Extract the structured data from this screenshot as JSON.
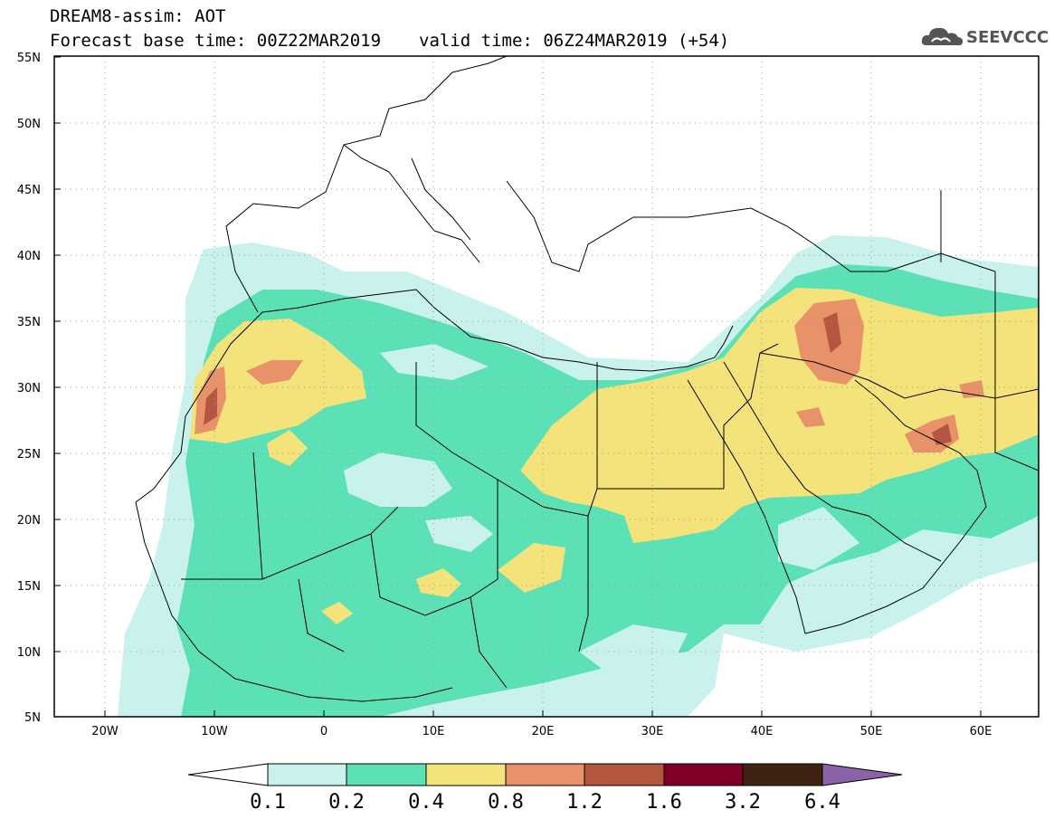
{
  "header": {
    "line1": "DREAM8-assim: AOT",
    "base_time": "Forecast base time: 00Z22MAR2019",
    "valid_time": "valid time: 06Z24MAR2019 (+54)"
  },
  "logo": {
    "text": "SEEVCCC",
    "icon": "cloud-icon"
  },
  "map": {
    "lat_labels": [
      "55N",
      "50N",
      "45N",
      "40N",
      "35N",
      "30N",
      "25N",
      "20N",
      "15N",
      "10N",
      "5N"
    ],
    "lon_labels": [
      "20W",
      "10W",
      "0",
      "10E",
      "20E",
      "30E",
      "40E",
      "50E",
      "60E"
    ],
    "extent": {
      "lon": [
        -25,
        65
      ],
      "lat": [
        5,
        55
      ]
    },
    "grid": "dotted"
  },
  "colorbar": {
    "labels": [
      "0.1",
      "0.2",
      "0.4",
      "0.8",
      "1.2",
      "1.6",
      "3.2",
      "6.4"
    ],
    "colors": [
      "#ffffff",
      "#c9f2ec",
      "#5ce0b6",
      "#f4e27a",
      "#e8926a",
      "#b55740",
      "#800028",
      "#3e2312",
      "#8b63a8"
    ]
  }
}
